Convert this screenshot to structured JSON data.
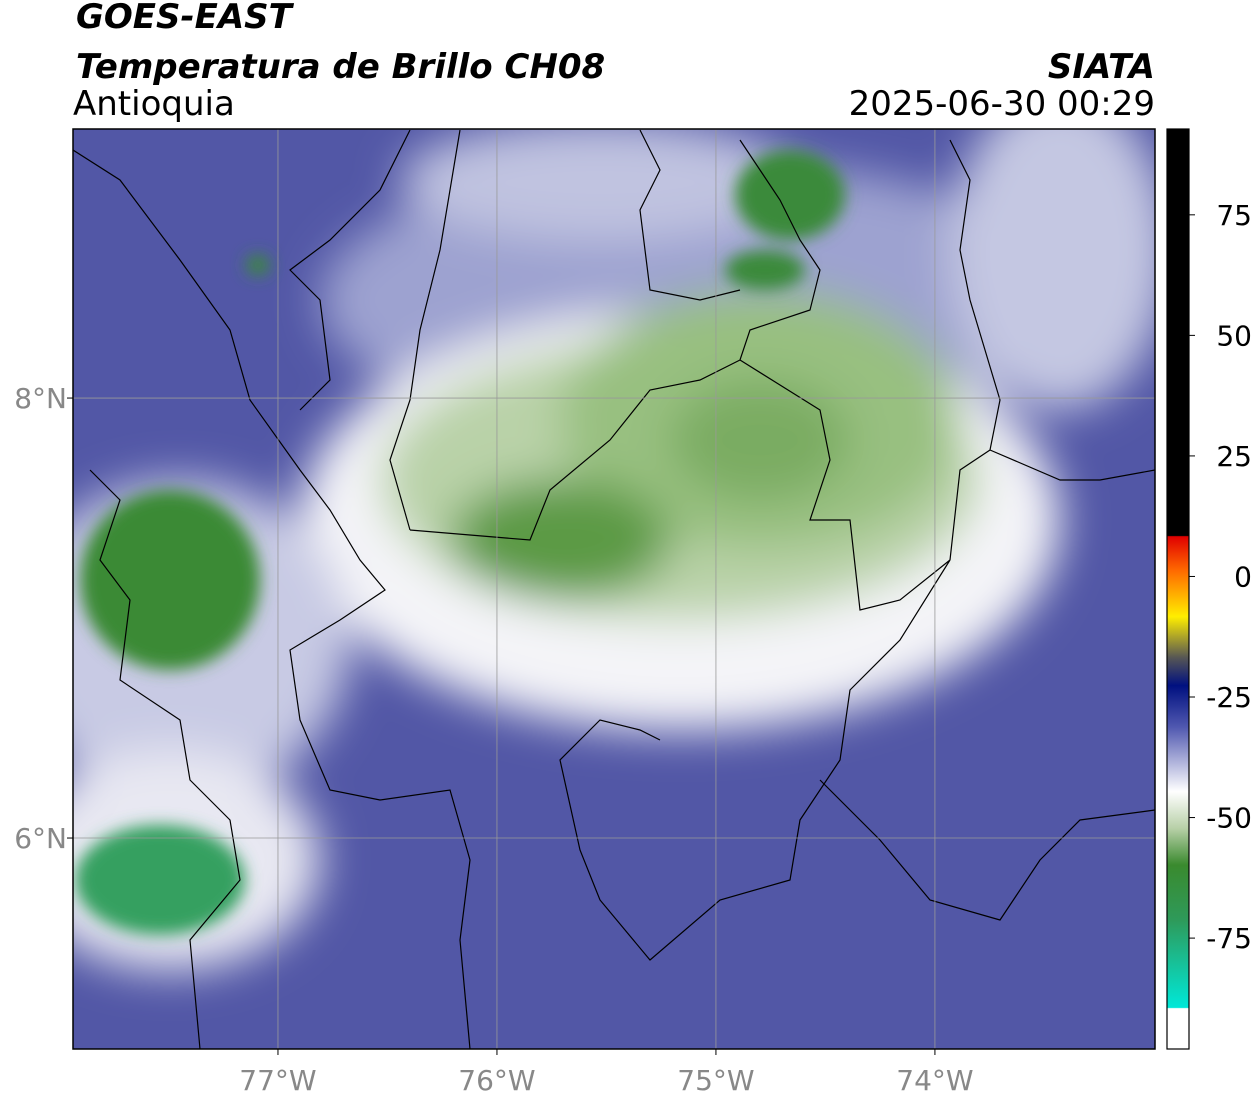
{
  "header": {
    "title": "GOES-EAST",
    "subtitle": "Temperatura de Brillo CH08",
    "region": "Antioquia",
    "source": "SIATA",
    "datetime": "2025-06-30 00:29"
  },
  "map": {
    "xlim": [
      -77.936,
      -72.995
    ],
    "ylim": [
      5.041,
      9.223
    ],
    "xticks": [
      {
        "value": -77,
        "label": "77°W"
      },
      {
        "value": -76,
        "label": "76°W"
      },
      {
        "value": -75,
        "label": "75°W"
      },
      {
        "value": -74,
        "label": "74°W"
      }
    ],
    "yticks": [
      {
        "value": 8,
        "label": "8°N"
      },
      {
        "value": 6,
        "label": "6°N"
      }
    ],
    "grid": true
  },
  "colorbar": {
    "lim": [
      -98,
      92.8
    ],
    "ticks": [
      75,
      50,
      25,
      0,
      -25,
      -50,
      -75
    ]
  }
}
